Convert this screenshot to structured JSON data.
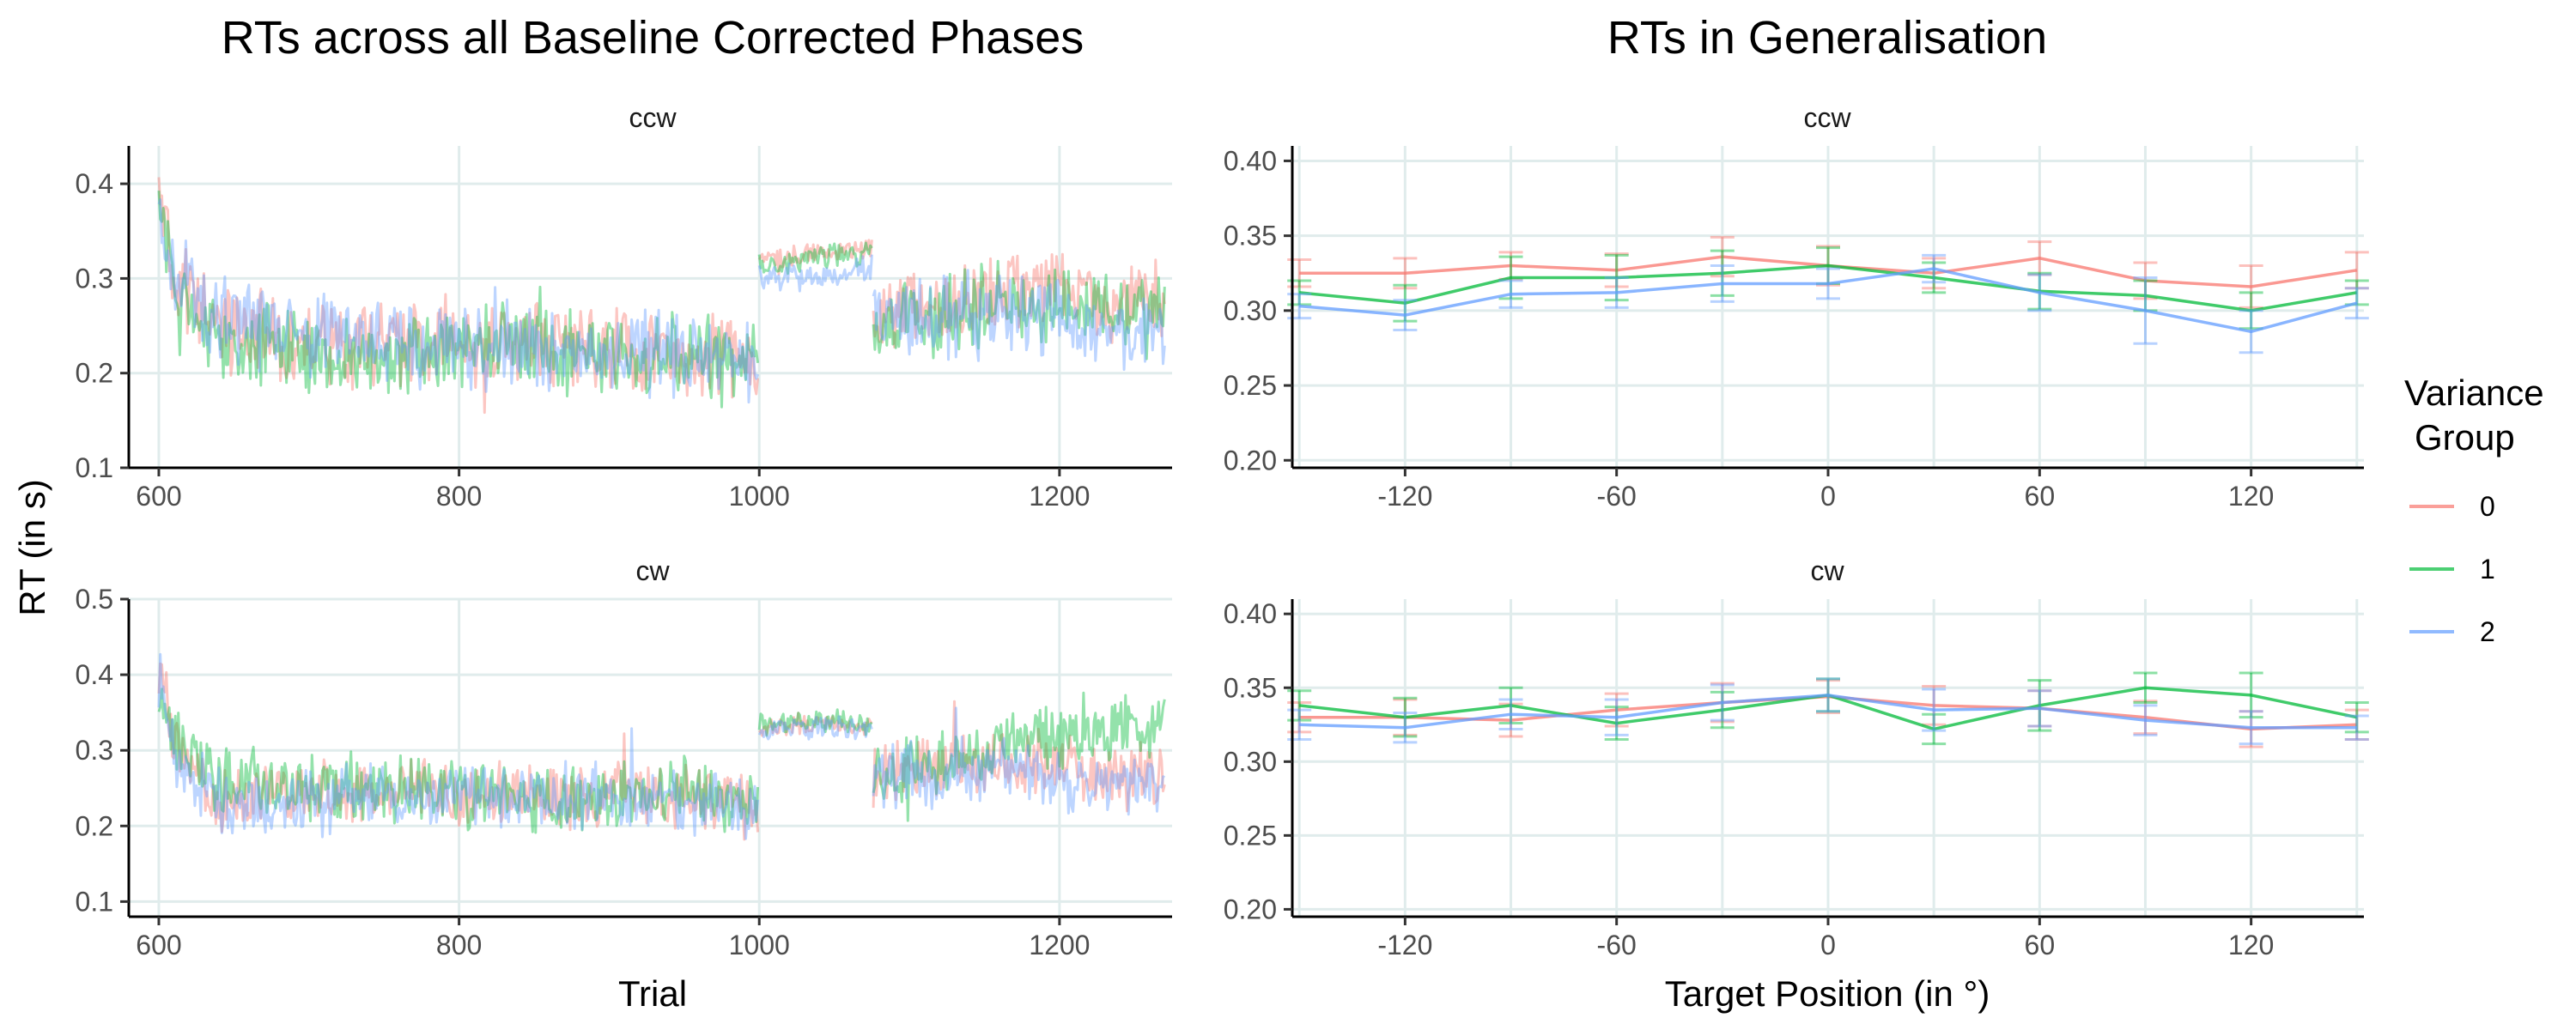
{
  "titles": {
    "left": "RTs across all Baseline Corrected Phases",
    "right": "RTs in Generalisation"
  },
  "axis_titles": {
    "y_shared": "RT (in s)",
    "x_left": "Trial",
    "x_right": "Target Position (in °)"
  },
  "legend": {
    "title_line1": "Variance",
    "title_line2": "Group",
    "items": [
      {
        "label": "0",
        "color": "#F8766D"
      },
      {
        "label": "1",
        "color": "#00BA38"
      },
      {
        "label": "2",
        "color": "#619CFF"
      }
    ]
  },
  "chart_data": [
    {
      "type": "line",
      "panel": "left-top",
      "facet": "ccw",
      "xlim": [
        580,
        1275
      ],
      "ylim": [
        0.1,
        0.44
      ],
      "x_ticks": [
        600,
        800,
        1000,
        1200
      ],
      "y_ticks": [
        0.1,
        0.2,
        0.3,
        0.4
      ],
      "grid": true,
      "noisy_trace": true,
      "series": [
        {
          "name": "0",
          "color": "#F8766D",
          "segments": [
            {
              "x": [
                600,
                612,
                640,
                700,
                760,
                820,
                880,
                940,
                999
              ],
              "y": [
                0.38,
                0.29,
                0.25,
                0.23,
                0.23,
                0.23,
                0.23,
                0.22,
                0.22
              ]
            },
            {
              "x": [
                1000,
                1040,
                1075
              ],
              "y": [
                0.32,
                0.325,
                0.33
              ]
            },
            {
              "x": [
                1076,
                1120,
                1170,
                1220,
                1270
              ],
              "y": [
                0.26,
                0.27,
                0.29,
                0.28,
                0.28
              ]
            }
          ]
        },
        {
          "name": "1",
          "color": "#00BA38",
          "segments": [
            {
              "x": [
                600,
                612,
                640,
                700,
                760,
                820,
                880,
                940,
                999
              ],
              "y": [
                0.37,
                0.28,
                0.24,
                0.22,
                0.22,
                0.23,
                0.22,
                0.22,
                0.21
              ]
            },
            {
              "x": [
                1000,
                1040,
                1075
              ],
              "y": [
                0.315,
                0.32,
                0.325
              ]
            },
            {
              "x": [
                1076,
                1120,
                1170,
                1220,
                1270
              ],
              "y": [
                0.25,
                0.26,
                0.27,
                0.27,
                0.26
              ]
            }
          ]
        },
        {
          "name": "2",
          "color": "#619CFF",
          "segments": [
            {
              "x": [
                600,
                612,
                640,
                700,
                760,
                820,
                880,
                940,
                999
              ],
              "y": [
                0.36,
                0.3,
                0.26,
                0.24,
                0.23,
                0.23,
                0.22,
                0.22,
                0.21
              ]
            },
            {
              "x": [
                1000,
                1040,
                1075
              ],
              "y": [
                0.305,
                0.3,
                0.31
              ]
            },
            {
              "x": [
                1076,
                1120,
                1170,
                1220,
                1270
              ],
              "y": [
                0.25,
                0.26,
                0.26,
                0.25,
                0.24
              ]
            }
          ]
        }
      ]
    },
    {
      "type": "line",
      "panel": "left-bottom",
      "facet": "cw",
      "xlim": [
        580,
        1275
      ],
      "ylim": [
        0.08,
        0.5
      ],
      "x_ticks": [
        600,
        800,
        1000,
        1200
      ],
      "y_ticks": [
        0.1,
        0.2,
        0.3,
        0.4,
        0.5
      ],
      "grid": true,
      "noisy_trace": true,
      "series": [
        {
          "name": "0",
          "color": "#F8766D",
          "segments": [
            {
              "x": [
                600,
                612,
                640,
                700,
                760,
                820,
                880,
                940,
                999
              ],
              "y": [
                0.4,
                0.3,
                0.24,
                0.24,
                0.24,
                0.24,
                0.24,
                0.24,
                0.23
              ]
            },
            {
              "x": [
                1000,
                1040,
                1075
              ],
              "y": [
                0.33,
                0.335,
                0.33
              ]
            },
            {
              "x": [
                1076,
                1120,
                1170,
                1220,
                1270
              ],
              "y": [
                0.27,
                0.28,
                0.29,
                0.27,
                0.26
              ]
            }
          ]
        },
        {
          "name": "1",
          "color": "#00BA38",
          "segments": [
            {
              "x": [
                600,
                612,
                640,
                700,
                760,
                820,
                880,
                940,
                999
              ],
              "y": [
                0.38,
                0.31,
                0.26,
                0.25,
                0.25,
                0.24,
                0.23,
                0.24,
                0.23
              ]
            },
            {
              "x": [
                1000,
                1040,
                1075
              ],
              "y": [
                0.335,
                0.34,
                0.335
              ]
            },
            {
              "x": [
                1076,
                1120,
                1170,
                1220,
                1270
              ],
              "y": [
                0.26,
                0.28,
                0.31,
                0.32,
                0.33
              ]
            }
          ]
        },
        {
          "name": "2",
          "color": "#619CFF",
          "segments": [
            {
              "x": [
                600,
                612,
                640,
                700,
                760,
                820,
                880,
                940,
                999
              ],
              "y": [
                0.39,
                0.29,
                0.23,
                0.23,
                0.24,
                0.24,
                0.24,
                0.23,
                0.22
              ]
            },
            {
              "x": [
                1000,
                1040,
                1075
              ],
              "y": [
                0.33,
                0.33,
                0.33
              ]
            },
            {
              "x": [
                1076,
                1120,
                1170,
                1220,
                1270
              ],
              "y": [
                0.26,
                0.27,
                0.28,
                0.26,
                0.24
              ]
            }
          ]
        }
      ]
    },
    {
      "type": "line",
      "panel": "right-top",
      "facet": "ccw",
      "xlim": [
        -152,
        152
      ],
      "ylim": [
        0.195,
        0.41
      ],
      "x_ticks": [
        -120,
        -60,
        0,
        60,
        120
      ],
      "y_ticks": [
        0.2,
        0.25,
        0.3,
        0.35,
        0.4
      ],
      "grid_x": [
        -150,
        -120,
        -90,
        -60,
        -30,
        0,
        30,
        60,
        90,
        120,
        150
      ],
      "grid": true,
      "error_bars": true,
      "x": [
        -150,
        -120,
        -90,
        -60,
        -30,
        0,
        30,
        60,
        90,
        120,
        150
      ],
      "series": [
        {
          "name": "0",
          "color": "#F8766D",
          "values": [
            0.325,
            0.325,
            0.33,
            0.327,
            0.336,
            0.33,
            0.325,
            0.335,
            0.32,
            0.316,
            0.327
          ],
          "errors": [
            0.009,
            0.01,
            0.009,
            0.011,
            0.013,
            0.013,
            0.01,
            0.011,
            0.012,
            0.014,
            0.012
          ]
        },
        {
          "name": "1",
          "color": "#00BA38",
          "values": [
            0.312,
            0.305,
            0.322,
            0.322,
            0.325,
            0.33,
            0.322,
            0.313,
            0.31,
            0.3,
            0.312
          ],
          "errors": [
            0.008,
            0.012,
            0.014,
            0.015,
            0.015,
            0.012,
            0.01,
            0.012,
            0.01,
            0.012,
            0.008
          ]
        },
        {
          "name": "2",
          "color": "#619CFF",
          "values": [
            0.303,
            0.297,
            0.311,
            0.312,
            0.318,
            0.318,
            0.328,
            0.312,
            0.3,
            0.286,
            0.305
          ],
          "errors": [
            0.008,
            0.01,
            0.009,
            0.01,
            0.012,
            0.01,
            0.009,
            0.012,
            0.022,
            0.014,
            0.01
          ]
        }
      ]
    },
    {
      "type": "line",
      "panel": "right-bottom",
      "facet": "cw",
      "xlim": [
        -152,
        152
      ],
      "ylim": [
        0.195,
        0.41
      ],
      "x_ticks": [
        -120,
        -60,
        0,
        60,
        120
      ],
      "y_ticks": [
        0.2,
        0.25,
        0.3,
        0.35,
        0.4
      ],
      "grid_x": [
        -150,
        -120,
        -90,
        -60,
        -30,
        0,
        30,
        60,
        90,
        120,
        150
      ],
      "grid": true,
      "error_bars": true,
      "x": [
        -150,
        -120,
        -90,
        -60,
        -30,
        0,
        30,
        60,
        90,
        120,
        150
      ],
      "series": [
        {
          "name": "0",
          "color": "#F8766D",
          "values": [
            0.33,
            0.33,
            0.328,
            0.335,
            0.34,
            0.344,
            0.338,
            0.336,
            0.33,
            0.322,
            0.325
          ],
          "errors": [
            0.01,
            0.012,
            0.011,
            0.011,
            0.013,
            0.011,
            0.013,
            0.012,
            0.011,
            0.012,
            0.01
          ]
        },
        {
          "name": "1",
          "color": "#00BA38",
          "values": [
            0.338,
            0.33,
            0.338,
            0.326,
            0.335,
            0.345,
            0.322,
            0.338,
            0.35,
            0.345,
            0.33
          ],
          "errors": [
            0.01,
            0.013,
            0.012,
            0.011,
            0.012,
            0.011,
            0.01,
            0.017,
            0.01,
            0.015,
            0.01
          ]
        },
        {
          "name": "2",
          "color": "#619CFF",
          "values": [
            0.325,
            0.323,
            0.332,
            0.33,
            0.34,
            0.345,
            0.335,
            0.336,
            0.328,
            0.323,
            0.323
          ],
          "errors": [
            0.01,
            0.01,
            0.01,
            0.012,
            0.012,
            0.011,
            0.014,
            0.012,
            0.01,
            0.011,
            0.008
          ]
        }
      ]
    }
  ]
}
